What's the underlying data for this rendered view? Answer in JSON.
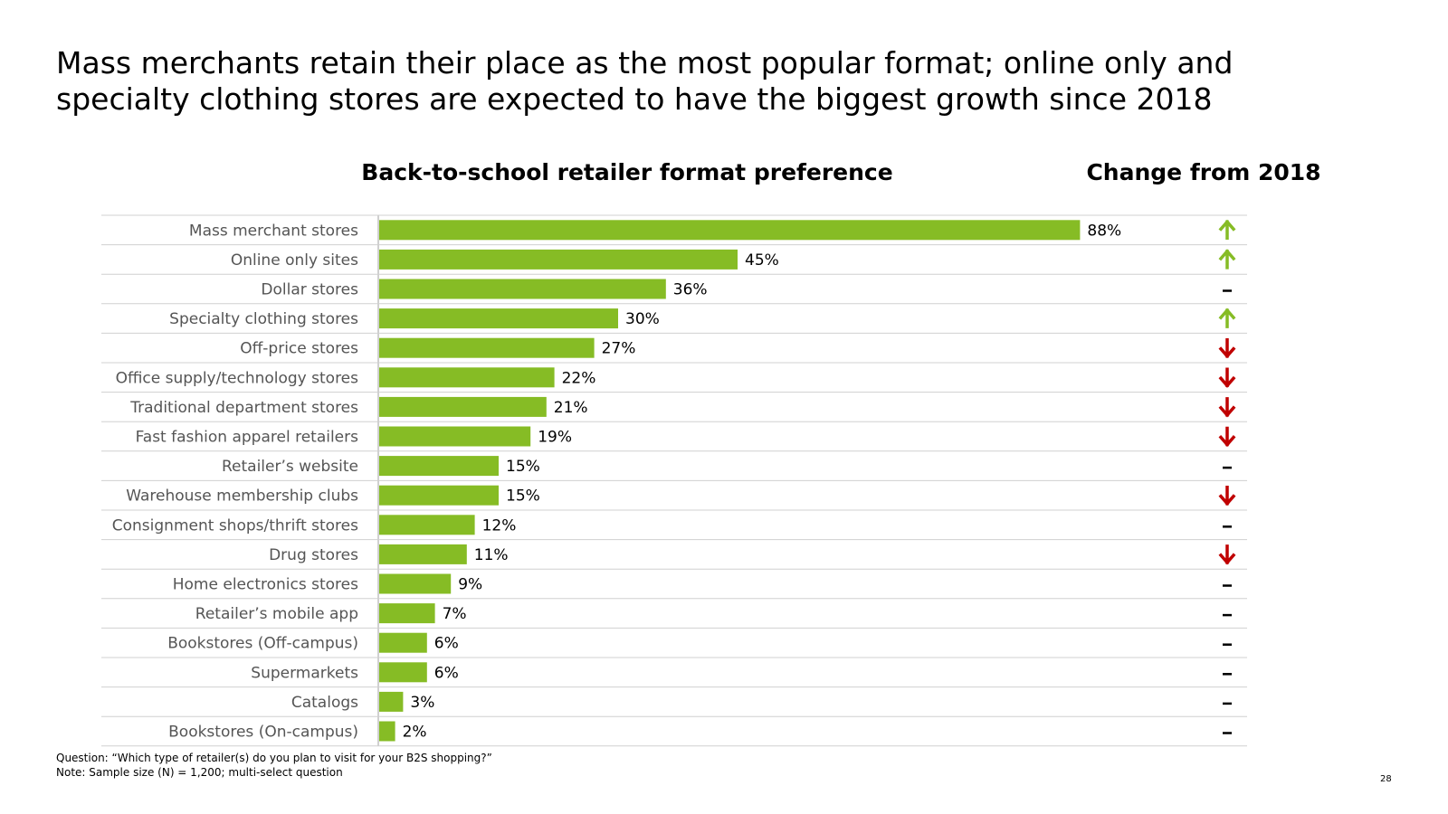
{
  "title": "Mass merchants retain their place as the most popular format; online only and specialty clothing stores are expected to have the biggest growth since 2018",
  "colors": {
    "bar": "#86bc25",
    "up": "#86bc25",
    "down": "#c00000",
    "flat": "#000000",
    "rule": "#d0d0d0",
    "label": "#555555"
  },
  "chart_data": {
    "type": "bar",
    "orientation": "horizontal",
    "title": "Back-to-school retailer format preference",
    "change_title": "Change from 2018",
    "categories": [
      "Mass merchant stores",
      "Online only sites",
      "Dollar stores",
      "Specialty clothing stores",
      "Off-price stores",
      "Office supply/technology stores",
      "Traditional department stores",
      "Fast fashion apparel retailers",
      "Retailer’s website",
      "Warehouse membership clubs",
      "Consignment shops/thrift stores",
      "Drug stores",
      "Home electronics stores",
      "Retailer’s mobile app",
      "Bookstores (Off-campus)",
      "Supermarkets",
      "Catalogs",
      "Bookstores (On-campus)"
    ],
    "values": [
      88,
      45,
      36,
      30,
      27,
      22,
      21,
      19,
      15,
      15,
      12,
      11,
      9,
      7,
      6,
      6,
      3,
      2
    ],
    "value_labels": [
      "88%",
      "45%",
      "36%",
      "30%",
      "27%",
      "22%",
      "21%",
      "19%",
      "15%",
      "15%",
      "12%",
      "11%",
      "9%",
      "7%",
      "6%",
      "6%",
      "3%",
      "2%"
    ],
    "change": [
      "up",
      "up",
      "flat",
      "up",
      "down",
      "down",
      "down",
      "down",
      "flat",
      "down",
      "flat",
      "down",
      "flat",
      "flat",
      "flat",
      "flat",
      "flat",
      "flat"
    ],
    "xlim": [
      0,
      100
    ],
    "grid": false,
    "legend": "none"
  },
  "footer": {
    "question": "Question: “Which type of retailer(s) do you plan to visit for your B2S shopping?”",
    "note": "Note: Sample size (N) = 1,200; multi-select question"
  },
  "page_number": "28"
}
